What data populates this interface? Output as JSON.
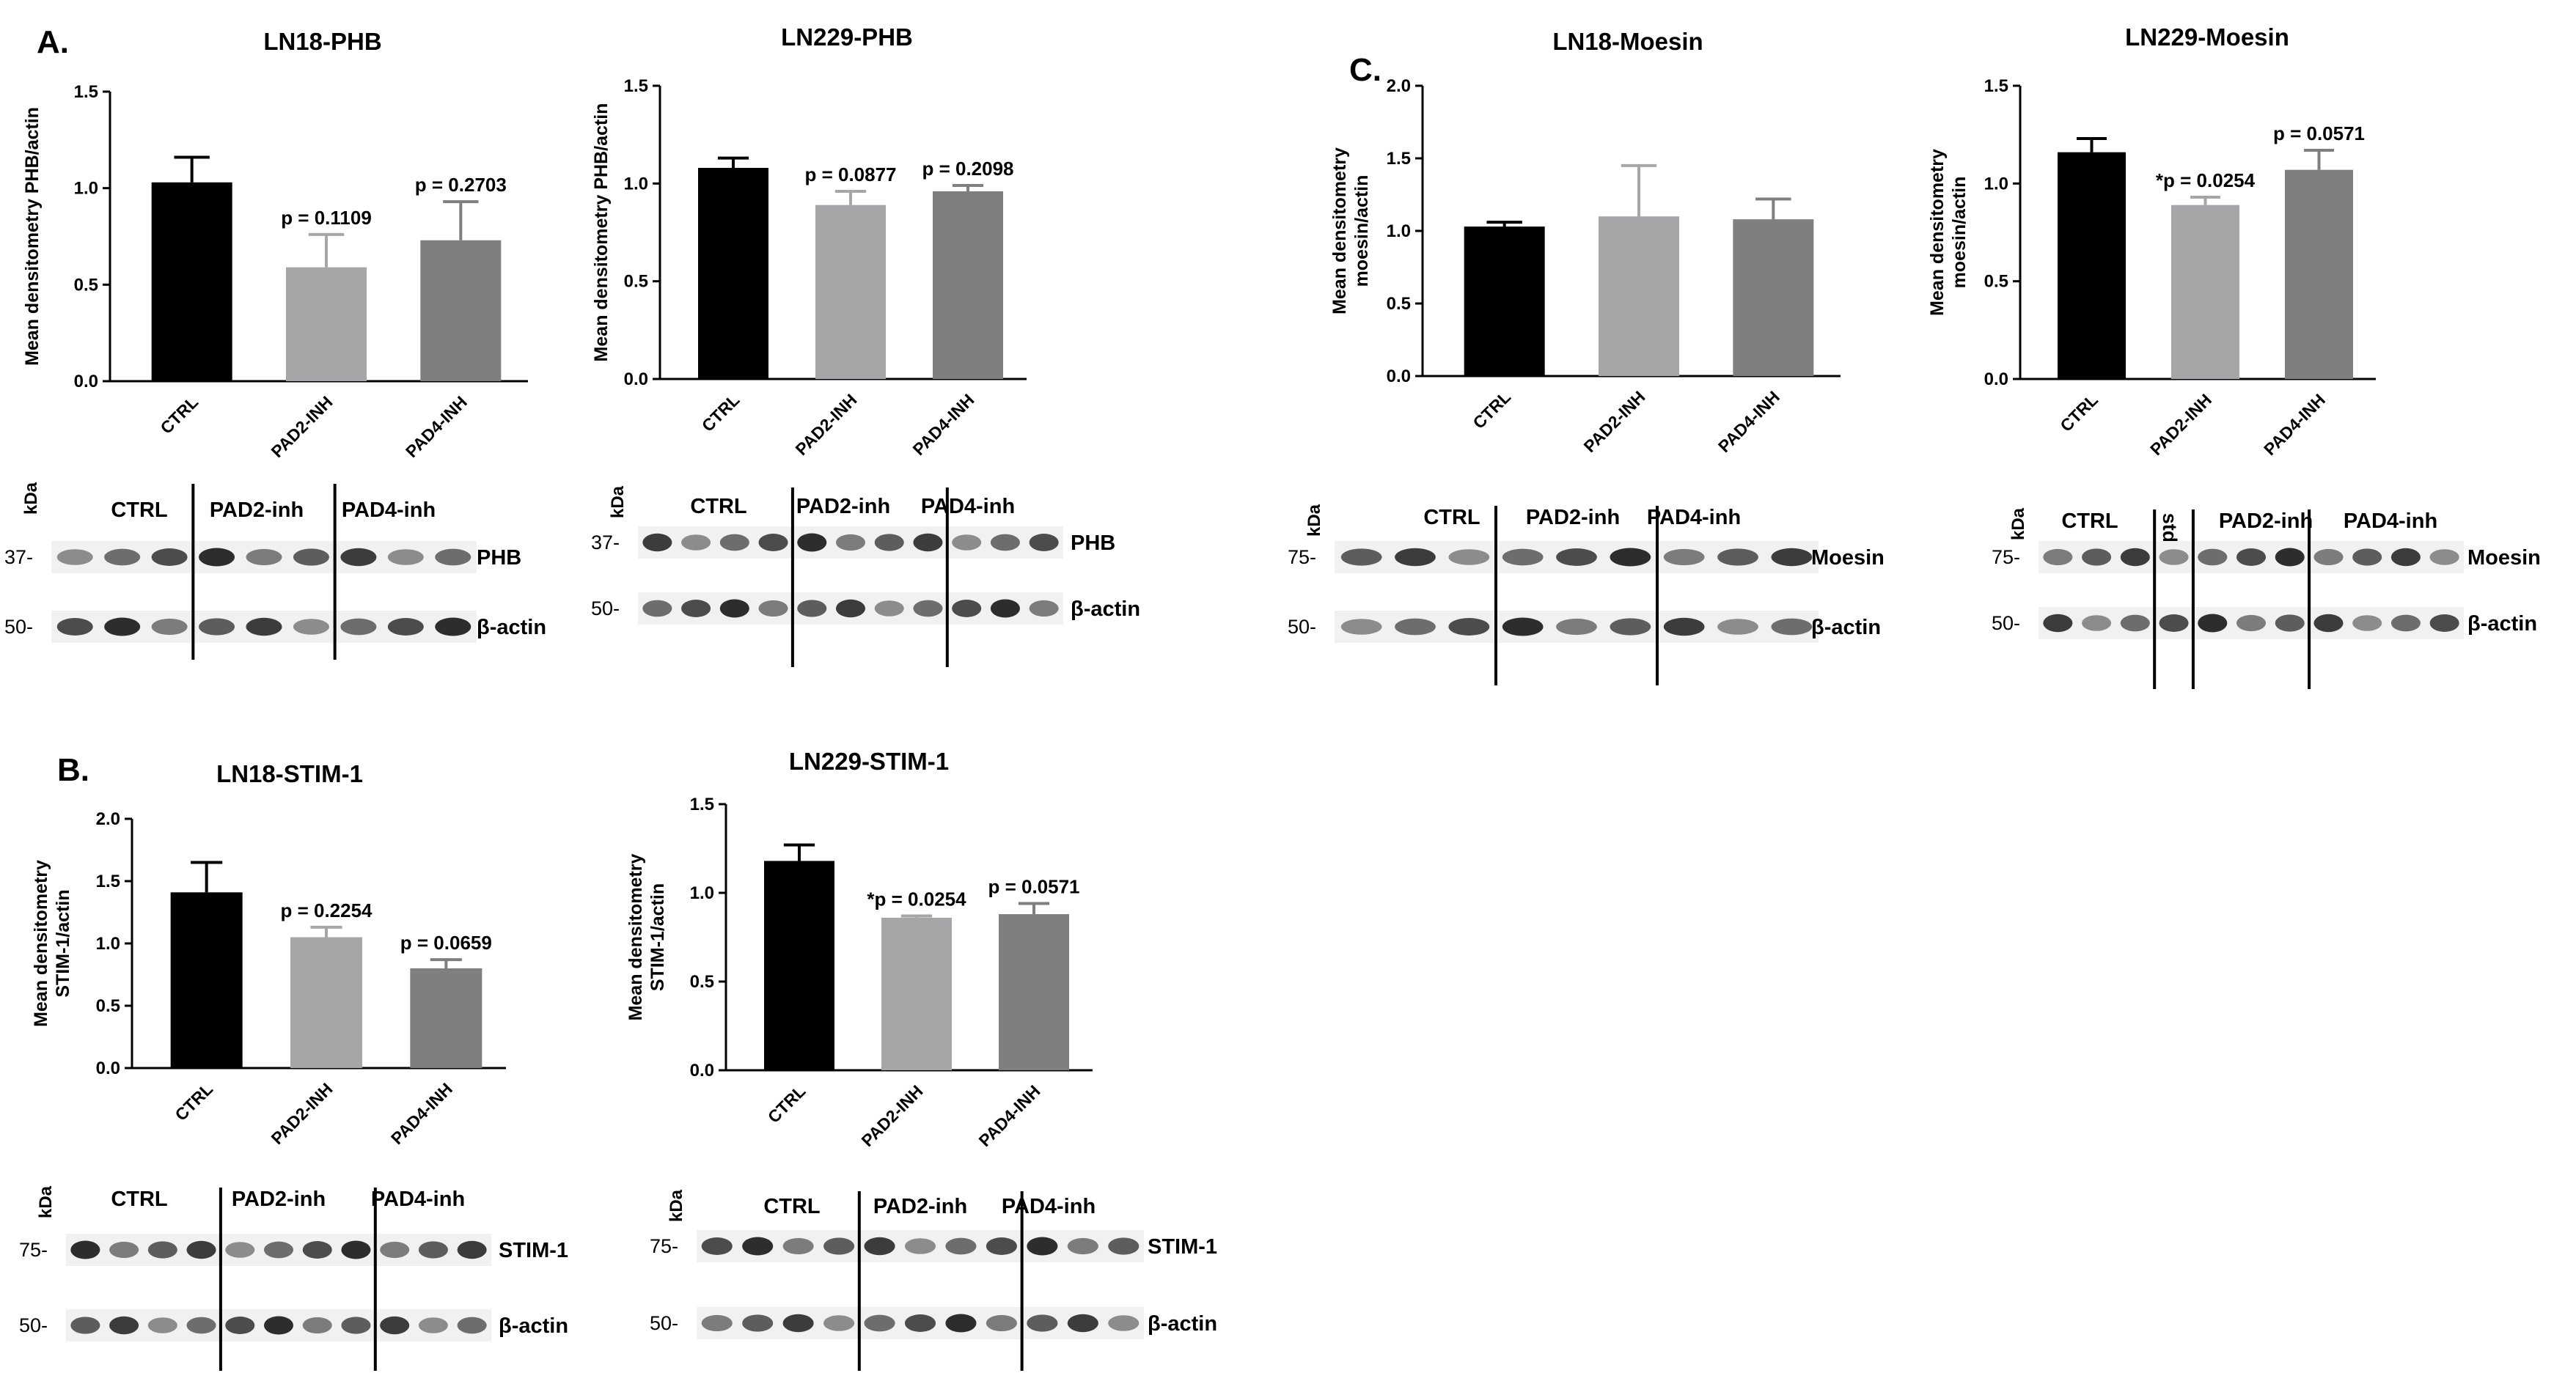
{
  "panels": {
    "A": "A.",
    "B": "B.",
    "C": "C."
  },
  "colors": {
    "CTRL": "#000000",
    "PAD2-INH": "#a6a6a8",
    "PAD4-INH": "#7f7f7f"
  },
  "chart_data": [
    {
      "id": "LN18-PHB",
      "type": "bar",
      "title": "LN18-PHB",
      "ylabel_lines": [
        "Mean densitometry PHB/actin"
      ],
      "categories": [
        "CTRL",
        "PAD2-INH",
        "PAD4-INH"
      ],
      "values": [
        1.03,
        0.59,
        0.73
      ],
      "errors": [
        0.13,
        0.17,
        0.2
      ],
      "pvalues": [
        "",
        "p = 0.1109",
        "p = 0.2703"
      ],
      "ylim": [
        0,
        1.5
      ],
      "yticks": [
        "0.0",
        "0.5",
        "1.0",
        "1.5"
      ]
    },
    {
      "id": "LN229-PHB",
      "type": "bar",
      "title": "LN229-PHB",
      "ylabel_lines": [
        "Mean densitometry PHB/actin"
      ],
      "categories": [
        "CTRL",
        "PAD2-INH",
        "PAD4-INH"
      ],
      "values": [
        1.08,
        0.89,
        0.96
      ],
      "errors": [
        0.05,
        0.07,
        0.03
      ],
      "pvalues": [
        "",
        "p = 0.0877",
        "p = 0.2098"
      ],
      "ylim": [
        0,
        1.5
      ],
      "yticks": [
        "0.0",
        "0.5",
        "1.0",
        "1.5"
      ]
    },
    {
      "id": "LN18-Moesin",
      "type": "bar",
      "title": "LN18-Moesin",
      "ylabel_lines": [
        "Mean densitometry",
        "moesin/actin"
      ],
      "categories": [
        "CTRL",
        "PAD2-INH",
        "PAD4-INH"
      ],
      "values": [
        1.03,
        1.1,
        1.08
      ],
      "errors": [
        0.03,
        0.35,
        0.14
      ],
      "pvalues": [
        "",
        "",
        ""
      ],
      "ylim": [
        0,
        2.0
      ],
      "yticks": [
        "0.0",
        "0.5",
        "1.0",
        "1.5",
        "2.0"
      ]
    },
    {
      "id": "LN229-Moesin",
      "type": "bar",
      "title": "LN229-Moesin",
      "ylabel_lines": [
        "Mean densitometry",
        "moesin/actin"
      ],
      "categories": [
        "CTRL",
        "PAD2-INH",
        "PAD4-INH"
      ],
      "values": [
        1.16,
        0.89,
        1.07
      ],
      "errors": [
        0.07,
        0.04,
        0.1
      ],
      "pvalues": [
        "",
        "*p = 0.0254",
        "p = 0.0571"
      ],
      "ylim": [
        0,
        1.5
      ],
      "yticks": [
        "0.0",
        "0.5",
        "1.0",
        "1.5"
      ]
    },
    {
      "id": "LN18-STIM-1",
      "type": "bar",
      "title": "LN18-STIM-1",
      "ylabel_lines": [
        "Mean densitometry",
        "STIM-1/actin"
      ],
      "categories": [
        "CTRL",
        "PAD2-INH",
        "PAD4-INH"
      ],
      "values": [
        1.41,
        1.05,
        0.8
      ],
      "errors": [
        0.24,
        0.08,
        0.07
      ],
      "pvalues": [
        "",
        "p = 0.2254",
        "p = 0.0659"
      ],
      "ylim": [
        0,
        2.0
      ],
      "yticks": [
        "0.0",
        "0.5",
        "1.0",
        "1.5",
        "2.0"
      ]
    },
    {
      "id": "LN229-STIM-1",
      "type": "bar",
      "title": "LN229-STIM-1",
      "ylabel_lines": [
        "Mean densitometry",
        "STIM-1/actin"
      ],
      "categories": [
        "CTRL",
        "PAD2-INH",
        "PAD4-INH"
      ],
      "values": [
        1.18,
        0.86,
        0.88
      ],
      "errors": [
        0.09,
        0.01,
        0.06
      ],
      "pvalues": [
        "",
        "*p = 0.0254",
        "p = 0.0571"
      ],
      "ylim": [
        0,
        1.5
      ],
      "yticks": [
        "0.0",
        "0.5",
        "1.0",
        "1.5"
      ]
    }
  ],
  "blots": [
    {
      "id": "blot-ln18-phb",
      "kda": "kDa",
      "groups": [
        "CTRL",
        "PAD2-inh",
        "PAD4-inh"
      ],
      "rows": [
        {
          "marker": "37-",
          "protein": "PHB"
        },
        {
          "marker": "50-",
          "protein": "β-actin"
        }
      ]
    },
    {
      "id": "blot-ln229-phb",
      "kda": "kDa",
      "groups": [
        "CTRL",
        "PAD2-inh",
        "PAD4-inh"
      ],
      "rows": [
        {
          "marker": "37-",
          "protein": "PHB"
        },
        {
          "marker": "50-",
          "protein": "β-actin"
        }
      ]
    },
    {
      "id": "blot-ln18-moesin",
      "kda": "kDa",
      "groups": [
        "CTRL",
        "PAD2-inh",
        "PAD4-inh"
      ],
      "rows": [
        {
          "marker": "75-",
          "protein": "Moesin"
        },
        {
          "marker": "50-",
          "protein": "β-actin"
        }
      ]
    },
    {
      "id": "blot-ln229-moesin",
      "kda": "kDa",
      "groups": [
        "CTRL",
        "std",
        "PAD2-inh",
        "PAD4-inh"
      ],
      "rows": [
        {
          "marker": "75-",
          "protein": "Moesin"
        },
        {
          "marker": "50-",
          "protein": "β-actin"
        }
      ]
    },
    {
      "id": "blot-ln18-stim",
      "kda": "kDa",
      "groups": [
        "CTRL",
        "PAD2-inh",
        "PAD4-inh"
      ],
      "rows": [
        {
          "marker": "75-",
          "protein": "STIM-1"
        },
        {
          "marker": "50-",
          "protein": "β-actin"
        }
      ]
    },
    {
      "id": "blot-ln229-stim",
      "kda": "kDa",
      "groups": [
        "CTRL",
        "PAD2-inh",
        "PAD4-inh"
      ],
      "rows": [
        {
          "marker": "75-",
          "protein": "STIM-1"
        },
        {
          "marker": "50-",
          "protein": "β-actin"
        }
      ]
    }
  ]
}
